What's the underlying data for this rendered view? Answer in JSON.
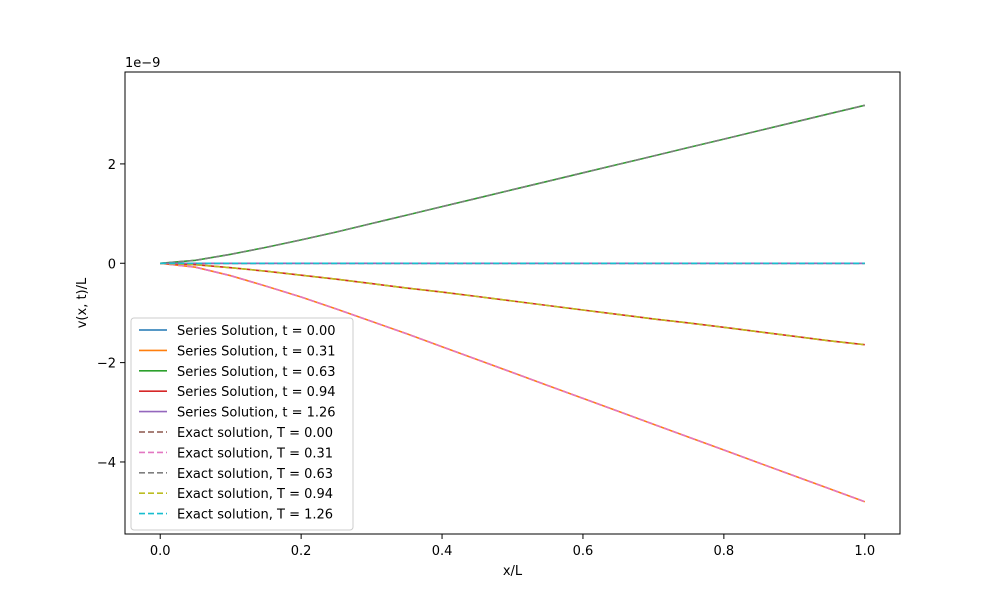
{
  "chart_data": {
    "type": "line",
    "title": "",
    "xlabel": "x/L",
    "ylabel": "v(x, t)/L",
    "y_offset_label": "1e−9",
    "xlim": [
      -0.05,
      1.05
    ],
    "ylim": [
      -5.45,
      3.85
    ],
    "x_ticks": [
      0.0,
      0.2,
      0.4,
      0.6,
      0.8,
      1.0
    ],
    "x_tick_labels": [
      "0.0",
      "0.2",
      "0.4",
      "0.6",
      "0.8",
      "1.0"
    ],
    "y_ticks": [
      -4,
      -2,
      0,
      2
    ],
    "y_tick_labels": [
      "−4",
      "−2",
      "0",
      "2"
    ],
    "grid": false,
    "legend_position": "lower-left",
    "x": [
      0.0,
      0.05,
      0.1,
      0.15,
      0.2,
      0.25,
      0.3,
      0.35,
      0.4,
      0.45,
      0.5,
      0.55,
      0.6,
      0.65,
      0.7,
      0.75,
      0.8,
      0.85,
      0.9,
      0.95,
      1.0
    ],
    "series": [
      {
        "name": "Series Solution, t = 0.00",
        "color": "#1f77b4",
        "style": "solid",
        "values": [
          0,
          0,
          0,
          0,
          0,
          0,
          0,
          0,
          0,
          0,
          0,
          0,
          0,
          0,
          0,
          0,
          0,
          0,
          0,
          0,
          0
        ]
      },
      {
        "name": "Series Solution, t = 0.31",
        "color": "#ff7f0e",
        "style": "solid",
        "values": [
          0,
          -0.08,
          -0.25,
          -0.46,
          -0.68,
          -0.92,
          -1.17,
          -1.42,
          -1.68,
          -1.94,
          -2.2,
          -2.46,
          -2.72,
          -2.98,
          -3.24,
          -3.5,
          -3.76,
          -4.02,
          -4.28,
          -4.54,
          -4.8
        ]
      },
      {
        "name": "Series Solution, t = 0.63",
        "color": "#2ca02c",
        "style": "solid",
        "values": [
          0,
          0.06,
          0.18,
          0.32,
          0.47,
          0.63,
          0.8,
          0.97,
          1.14,
          1.31,
          1.48,
          1.65,
          1.82,
          1.99,
          2.16,
          2.33,
          2.5,
          2.67,
          2.84,
          3.01,
          3.18
        ]
      },
      {
        "name": "Series Solution, t = 0.94",
        "color": "#d62728",
        "style": "solid",
        "values": [
          0,
          -0.03,
          -0.09,
          -0.16,
          -0.24,
          -0.32,
          -0.41,
          -0.5,
          -0.58,
          -0.67,
          -0.76,
          -0.85,
          -0.94,
          -1.03,
          -1.12,
          -1.2,
          -1.29,
          -1.38,
          -1.47,
          -1.56,
          -1.64
        ]
      },
      {
        "name": "Series Solution, t = 1.26",
        "color": "#9467bd",
        "style": "solid",
        "values": [
          0,
          0,
          0,
          0,
          0,
          0,
          0,
          0,
          0,
          0,
          0,
          0,
          0,
          0,
          0,
          0,
          0,
          0,
          0,
          0,
          0
        ]
      },
      {
        "name": "Exact solution, T = 0.00",
        "color": "#8c564b",
        "style": "dashed",
        "values": [
          0,
          0,
          0,
          0,
          0,
          0,
          0,
          0,
          0,
          0,
          0,
          0,
          0,
          0,
          0,
          0,
          0,
          0,
          0,
          0,
          0
        ]
      },
      {
        "name": "Exact solution, T = 0.31",
        "color": "#e377c2",
        "style": "dashed",
        "values": [
          0,
          -0.08,
          -0.25,
          -0.46,
          -0.68,
          -0.92,
          -1.17,
          -1.42,
          -1.68,
          -1.94,
          -2.2,
          -2.46,
          -2.72,
          -2.98,
          -3.24,
          -3.5,
          -3.76,
          -4.02,
          -4.28,
          -4.54,
          -4.8
        ]
      },
      {
        "name": "Exact solution, T = 0.63",
        "color": "#7f7f7f",
        "style": "dashed",
        "values": [
          0,
          0.06,
          0.18,
          0.32,
          0.47,
          0.63,
          0.8,
          0.97,
          1.14,
          1.31,
          1.48,
          1.65,
          1.82,
          1.99,
          2.16,
          2.33,
          2.5,
          2.67,
          2.84,
          3.01,
          3.18
        ]
      },
      {
        "name": "Exact solution, T = 0.94",
        "color": "#bcbd22",
        "style": "dashed",
        "values": [
          0,
          -0.03,
          -0.09,
          -0.16,
          -0.24,
          -0.32,
          -0.41,
          -0.5,
          -0.58,
          -0.67,
          -0.76,
          -0.85,
          -0.94,
          -1.03,
          -1.12,
          -1.2,
          -1.29,
          -1.38,
          -1.47,
          -1.56,
          -1.64
        ]
      },
      {
        "name": "Exact solution, T = 1.26",
        "color": "#17becf",
        "style": "dashed",
        "values": [
          0,
          0,
          0,
          0,
          0,
          0,
          0,
          0,
          0,
          0,
          0,
          0,
          0,
          0,
          0,
          0,
          0,
          0,
          0,
          0,
          0
        ]
      }
    ]
  }
}
